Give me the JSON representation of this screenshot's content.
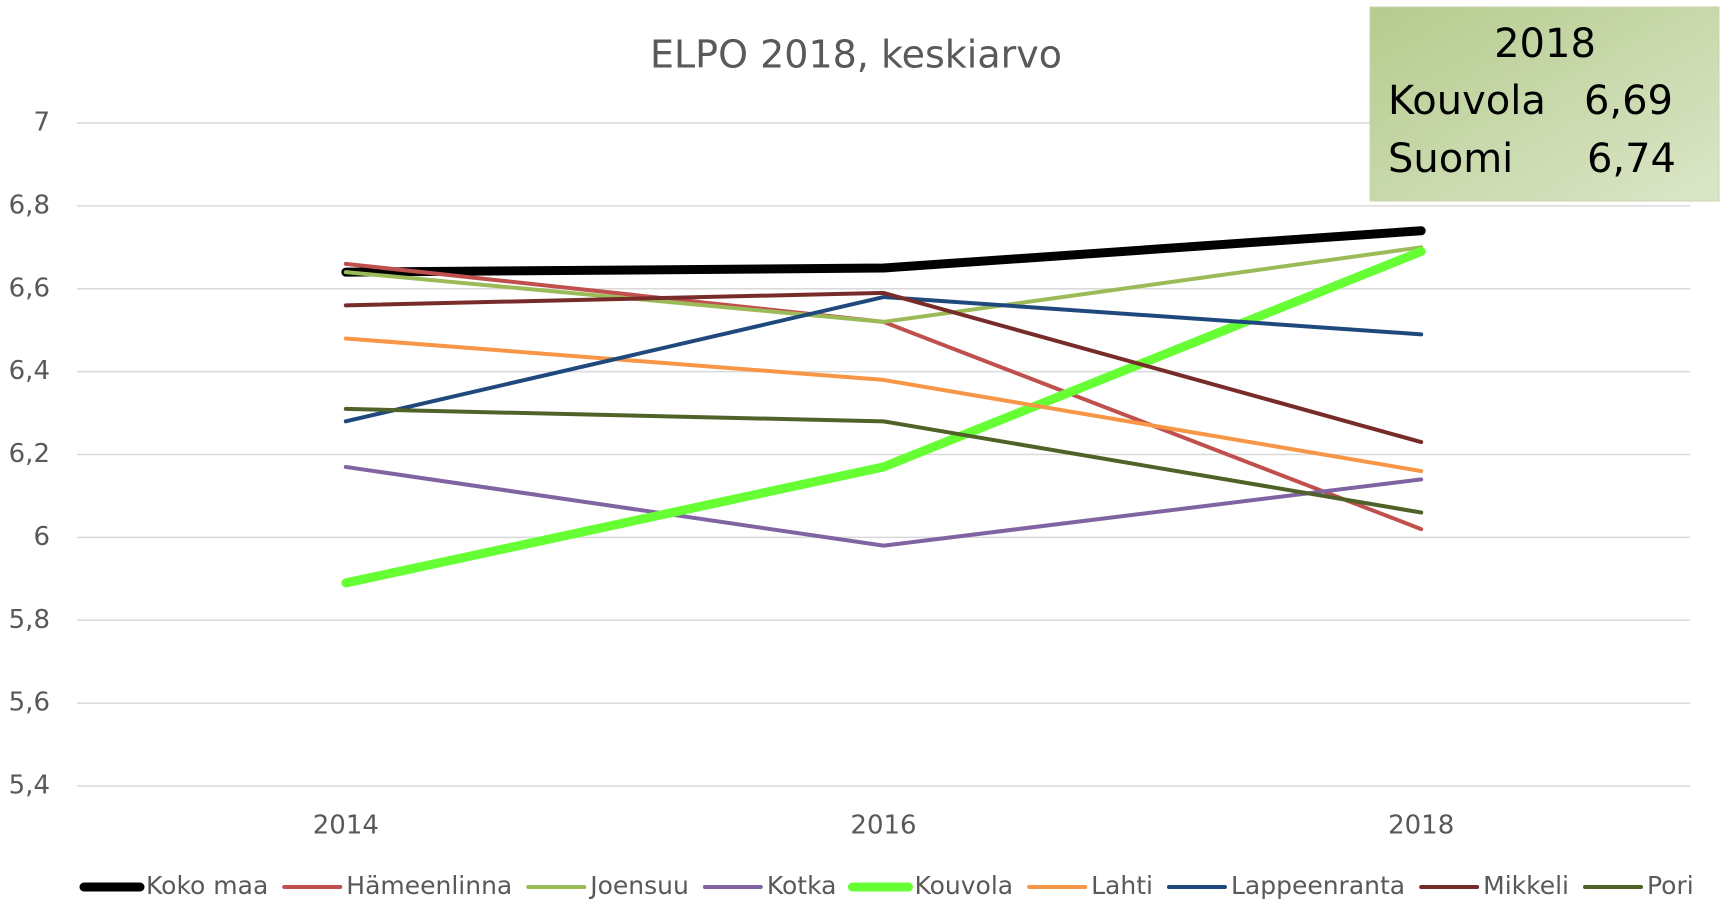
{
  "chart_data": {
    "type": "line",
    "title": "ELPO 2018, keskiarvo",
    "categories": [
      "2014",
      "2016",
      "2018"
    ],
    "series": [
      {
        "name": "Koko maa",
        "color": "#000000",
        "width": 9,
        "values": [
          6.64,
          6.65,
          6.74
        ]
      },
      {
        "name": "Hämeenlinna",
        "color": "#c0504d",
        "width": 4,
        "values": [
          6.66,
          6.52,
          6.02
        ]
      },
      {
        "name": "Joensuu",
        "color": "#9bbb59",
        "width": 4,
        "values": [
          6.64,
          6.52,
          6.7
        ]
      },
      {
        "name": "Kotka",
        "color": "#8064a2",
        "width": 4,
        "values": [
          6.17,
          5.98,
          6.14
        ]
      },
      {
        "name": "Kouvola",
        "color": "#66ff33",
        "width": 9,
        "values": [
          5.89,
          6.17,
          6.69
        ]
      },
      {
        "name": "Lahti",
        "color": "#f79646",
        "width": 4,
        "values": [
          6.48,
          6.38,
          6.16
        ]
      },
      {
        "name": "Lappeenranta",
        "color": "#1f497d",
        "width": 4,
        "values": [
          6.28,
          6.58,
          6.49
        ]
      },
      {
        "name": "Mikkeli",
        "color": "#772c2a",
        "width": 4,
        "values": [
          6.56,
          6.59,
          6.23
        ]
      },
      {
        "name": "Pori",
        "color": "#4f6228",
        "width": 4,
        "values": [
          6.31,
          6.28,
          6.06
        ]
      }
    ],
    "ylim": [
      5.4,
      7
    ],
    "yticks": [
      {
        "value": 5.4,
        "label": "5,4"
      },
      {
        "value": 5.6,
        "label": "5,6"
      },
      {
        "value": 5.8,
        "label": "5,8"
      },
      6,
      {
        "value": 6.2,
        "label": "6,2"
      },
      {
        "value": 6.4,
        "label": "6,4"
      },
      {
        "value": 6.6,
        "label": "6,6"
      },
      {
        "value": 6.8,
        "label": "6,8"
      },
      7
    ],
    "grid": true,
    "annotation": {
      "title": "2018",
      "rows": [
        [
          "Kouvola",
          "6,69"
        ],
        [
          "Suomi",
          "6,74"
        ]
      ]
    }
  }
}
